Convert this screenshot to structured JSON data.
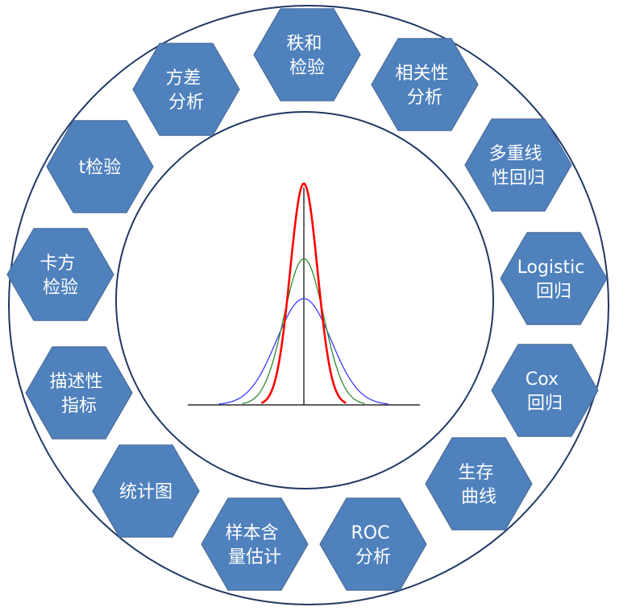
{
  "colors": {
    "hex_fill": "#4f81bd",
    "ring_stroke": "#1f3864",
    "text": "#ffffff",
    "axis": "#000000",
    "curve_tall": "#ff0000",
    "curve_mid": "#2e8b2e",
    "curve_wide": "#3a3aff"
  },
  "methods": [
    {
      "id": "rank-sum-test",
      "lines": [
        "秩和",
        "检验"
      ]
    },
    {
      "id": "correlation-analysis",
      "lines": [
        "相关性",
        "分析"
      ]
    },
    {
      "id": "multiple-linear-regression",
      "lines": [
        "多重线",
        "性回归"
      ]
    },
    {
      "id": "logistic-regression",
      "lines": [
        "Logistic",
        "回归"
      ]
    },
    {
      "id": "cox-regression",
      "lines": [
        "Cox",
        "回归"
      ]
    },
    {
      "id": "survival-curve",
      "lines": [
        "生存",
        "曲线"
      ]
    },
    {
      "id": "roc-analysis",
      "lines": [
        "ROC",
        "分析"
      ]
    },
    {
      "id": "sample-size-estimation",
      "lines": [
        "样本含",
        "量估计"
      ]
    },
    {
      "id": "statistical-chart",
      "lines": [
        "统计图"
      ]
    },
    {
      "id": "descriptive-indicators",
      "lines": [
        "描述性",
        "指标"
      ]
    },
    {
      "id": "chi-square-test",
      "lines": [
        "卡方",
        "检验"
      ]
    },
    {
      "id": "t-test",
      "lines": [
        "t检验"
      ]
    },
    {
      "id": "analysis-of-variance",
      "lines": [
        "方差",
        "分析"
      ]
    }
  ],
  "center_graphic": {
    "icon": "normal-distribution-curves",
    "curves": [
      {
        "color_key": "curve_wide",
        "relative_sd": 2.0,
        "relative_peak": 0.48
      },
      {
        "color_key": "curve_mid",
        "relative_sd": 1.45,
        "relative_peak": 0.66
      },
      {
        "color_key": "curve_tall",
        "relative_sd": 1.0,
        "relative_peak": 1.0
      }
    ]
  }
}
